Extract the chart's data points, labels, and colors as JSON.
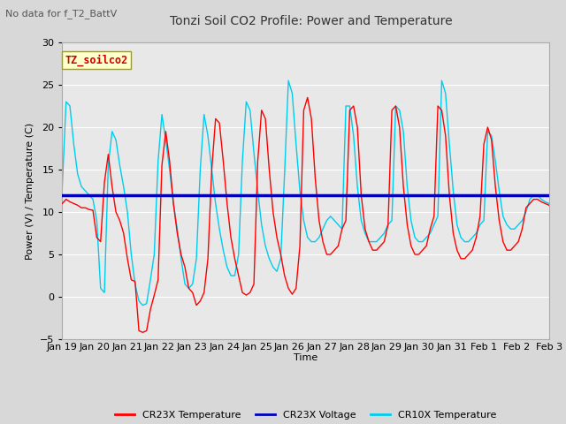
{
  "title": "Tonzi Soil CO2 Profile: Power and Temperature",
  "subtitle": "No data for f_T2_BattV",
  "ylabel": "Power (V) / Temperature (C)",
  "xlabel": "Time",
  "ylim": [
    -5,
    30
  ],
  "yticks": [
    -5,
    0,
    5,
    10,
    15,
    20,
    25,
    30
  ],
  "x_labels": [
    "Jan 19",
    "Jan 20",
    "Jan 21",
    "Jan 22",
    "Jan 23",
    "Jan 24",
    "Jan 25",
    "Jan 26",
    "Jan 27",
    "Jan 28",
    "Jan 29",
    "Jan 30",
    "Jan 31",
    "Feb 1",
    "Feb 2",
    "Feb 3"
  ],
  "voltage_value": 12.0,
  "legend_entries": [
    "CR23X Temperature",
    "CR23X Voltage",
    "CR10X Temperature"
  ],
  "legend_colors": [
    "#ff0000",
    "#0000bb",
    "#00ccee"
  ],
  "cr23x_color": "#ff0000",
  "cr10x_color": "#00ccee",
  "voltage_color": "#0000bb",
  "plot_bg_color": "#e8e8e8",
  "fig_bg_color": "#d8d8d8",
  "watermark_text": "TZ_soilco2",
  "watermark_color": "#cc0000",
  "watermark_bg": "#ffffcc",
  "n_days": 16,
  "cr23x_data": [
    11.0,
    11.5,
    11.2,
    11.0,
    10.8,
    10.5,
    10.5,
    10.3,
    10.2,
    7.0,
    6.5,
    13.5,
    16.8,
    13.0,
    10.0,
    9.0,
    7.5,
    4.5,
    2.0,
    1.8,
    -4.0,
    -4.2,
    -4.0,
    -1.5,
    0.2,
    2.0,
    15.5,
    19.5,
    16.0,
    11.0,
    7.5,
    5.0,
    3.5,
    1.0,
    0.5,
    -1.0,
    -0.5,
    0.5,
    4.5,
    15.0,
    21.0,
    20.5,
    16.0,
    11.0,
    7.0,
    4.5,
    2.5,
    0.5,
    0.2,
    0.5,
    1.5,
    16.0,
    22.0,
    21.0,
    15.0,
    10.0,
    7.0,
    5.0,
    2.5,
    1.0,
    0.3,
    1.0,
    6.0,
    22.0,
    23.5,
    21.0,
    14.0,
    9.0,
    6.5,
    5.0,
    5.0,
    5.5,
    6.0,
    8.0,
    9.0,
    22.0,
    22.5,
    20.0,
    12.0,
    8.0,
    6.5,
    5.5,
    5.5,
    6.0,
    6.5,
    8.5,
    22.0,
    22.5,
    20.0,
    13.0,
    8.5,
    6.0,
    5.0,
    5.0,
    5.5,
    6.0,
    8.0,
    9.5,
    22.5,
    22.0,
    19.0,
    12.0,
    7.5,
    5.5,
    4.5,
    4.5,
    5.0,
    5.5,
    7.0,
    9.5,
    18.0,
    20.0,
    18.5,
    13.0,
    9.0,
    6.5,
    5.5,
    5.5,
    6.0,
    6.5,
    8.0,
    10.5,
    11.0,
    11.5,
    11.5,
    11.2,
    11.0,
    10.8
  ],
  "cr10x_data": [
    13.0,
    23.0,
    22.5,
    18.0,
    14.5,
    13.0,
    12.5,
    12.0,
    11.5,
    9.0,
    1.0,
    0.5,
    15.5,
    19.5,
    18.5,
    15.5,
    13.0,
    10.0,
    5.0,
    1.5,
    -0.5,
    -1.0,
    -0.8,
    2.0,
    5.0,
    16.0,
    21.5,
    18.5,
    15.0,
    11.0,
    8.0,
    4.5,
    1.5,
    1.0,
    1.5,
    4.5,
    15.0,
    21.5,
    19.0,
    15.0,
    11.0,
    8.0,
    5.5,
    3.5,
    2.5,
    2.5,
    5.0,
    16.0,
    23.0,
    22.0,
    17.0,
    12.5,
    8.5,
    6.0,
    4.5,
    3.5,
    3.0,
    4.5,
    14.5,
    25.5,
    24.0,
    18.0,
    12.5,
    9.0,
    7.0,
    6.5,
    6.5,
    7.0,
    8.0,
    9.0,
    9.5,
    9.0,
    8.5,
    8.0,
    22.5,
    22.5,
    19.0,
    13.0,
    9.0,
    7.5,
    6.5,
    6.5,
    6.5,
    7.0,
    7.5,
    8.5,
    9.0,
    22.5,
    22.0,
    19.5,
    13.0,
    9.0,
    7.0,
    6.5,
    6.5,
    7.0,
    7.5,
    8.5,
    9.5,
    25.5,
    24.0,
    18.0,
    12.5,
    8.5,
    7.0,
    6.5,
    6.5,
    7.0,
    7.5,
    8.5,
    9.0,
    19.5,
    19.0,
    16.0,
    12.5,
    9.5,
    8.5,
    8.0,
    8.0,
    8.5,
    9.0,
    10.0,
    11.5,
    12.0,
    12.0,
    11.5,
    11.2,
    11.0
  ]
}
